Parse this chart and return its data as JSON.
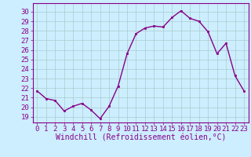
{
  "hours": [
    0,
    1,
    2,
    3,
    4,
    5,
    6,
    7,
    8,
    9,
    10,
    11,
    12,
    13,
    14,
    15,
    16,
    17,
    18,
    19,
    20,
    21,
    22,
    23
  ],
  "values": [
    21.7,
    20.9,
    20.7,
    19.6,
    20.1,
    20.4,
    19.7,
    18.8,
    20.1,
    22.2,
    25.6,
    27.7,
    28.3,
    28.5,
    28.4,
    29.4,
    30.1,
    29.3,
    29.0,
    27.9,
    25.6,
    26.7,
    23.3,
    21.7
  ],
  "line_color": "#880088",
  "marker": "s",
  "marker_size": 2.0,
  "linewidth": 1.0,
  "xlabel": "Windchill (Refroidissement éolien,°C)",
  "xlabel_fontsize": 7.0,
  "ylabel_ticks": [
    19,
    20,
    21,
    22,
    23,
    24,
    25,
    26,
    27,
    28,
    29,
    30
  ],
  "ylim": [
    18.4,
    30.9
  ],
  "xlim": [
    -0.5,
    23.5
  ],
  "bg_color": "#cceeff",
  "grid_color": "#aacccc",
  "tick_fontsize": 6.5
}
